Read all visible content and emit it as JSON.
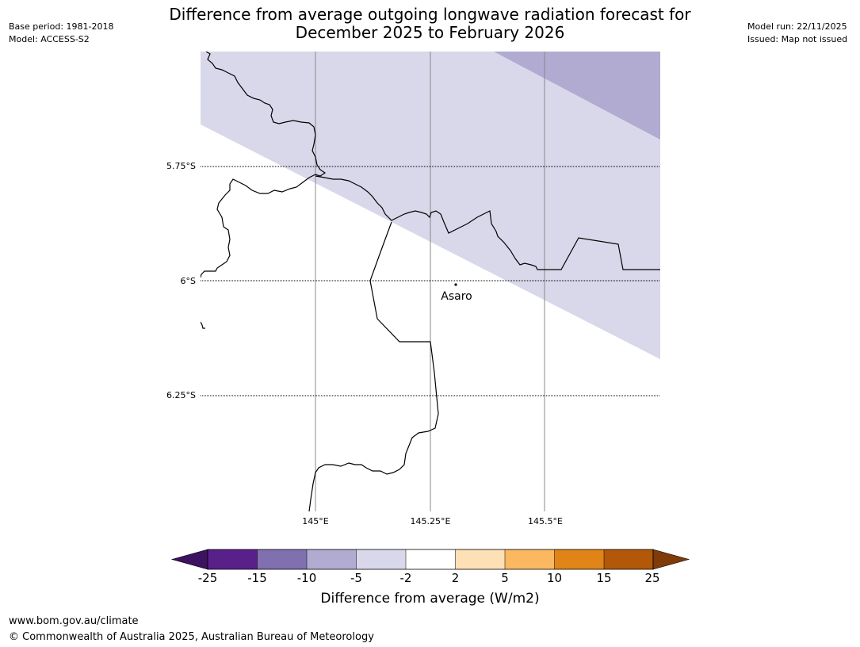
{
  "title": {
    "line1": "Difference from average outgoing longwave radiation forecast for",
    "line2": "December 2025 to February 2026"
  },
  "meta_left": {
    "base_period": "Base period: 1981-2018",
    "model": "Model: ACCESS-S2"
  },
  "meta_right": {
    "model_run": "Model run: 22/11/2025",
    "issued": "Issued: Map not issued"
  },
  "map": {
    "lat_labels": [
      "5.75°S",
      "6°S",
      "6.25°S"
    ],
    "lon_labels": [
      "145°E",
      "145.25°E",
      "145.5°E"
    ],
    "place": {
      "name": "Asaro",
      "lat": -6.01,
      "lon": 145.3
    },
    "colors": {
      "lightest_purple": "#d8d8ea",
      "light_purple": "#b1aad1",
      "grid_line": "#888888",
      "boundary": "#000000"
    }
  },
  "legend": {
    "title": "Difference from average (W/m2)",
    "ticks": [
      "-25",
      "-15",
      "-10",
      "-5",
      "-2",
      "2",
      "5",
      "10",
      "15",
      "25"
    ],
    "colors": [
      "#3d1260",
      "#59208a",
      "#8070b0",
      "#b1aad1",
      "#d8d8ea",
      "#ffffff",
      "#fde0b6",
      "#fbb860",
      "#e08418",
      "#b35808",
      "#7f3b08"
    ]
  },
  "footer": {
    "url": "www.bom.gov.au/climate",
    "copyright": "© Commonwealth of Australia 2025, Australian Bureau of Meteorology"
  }
}
